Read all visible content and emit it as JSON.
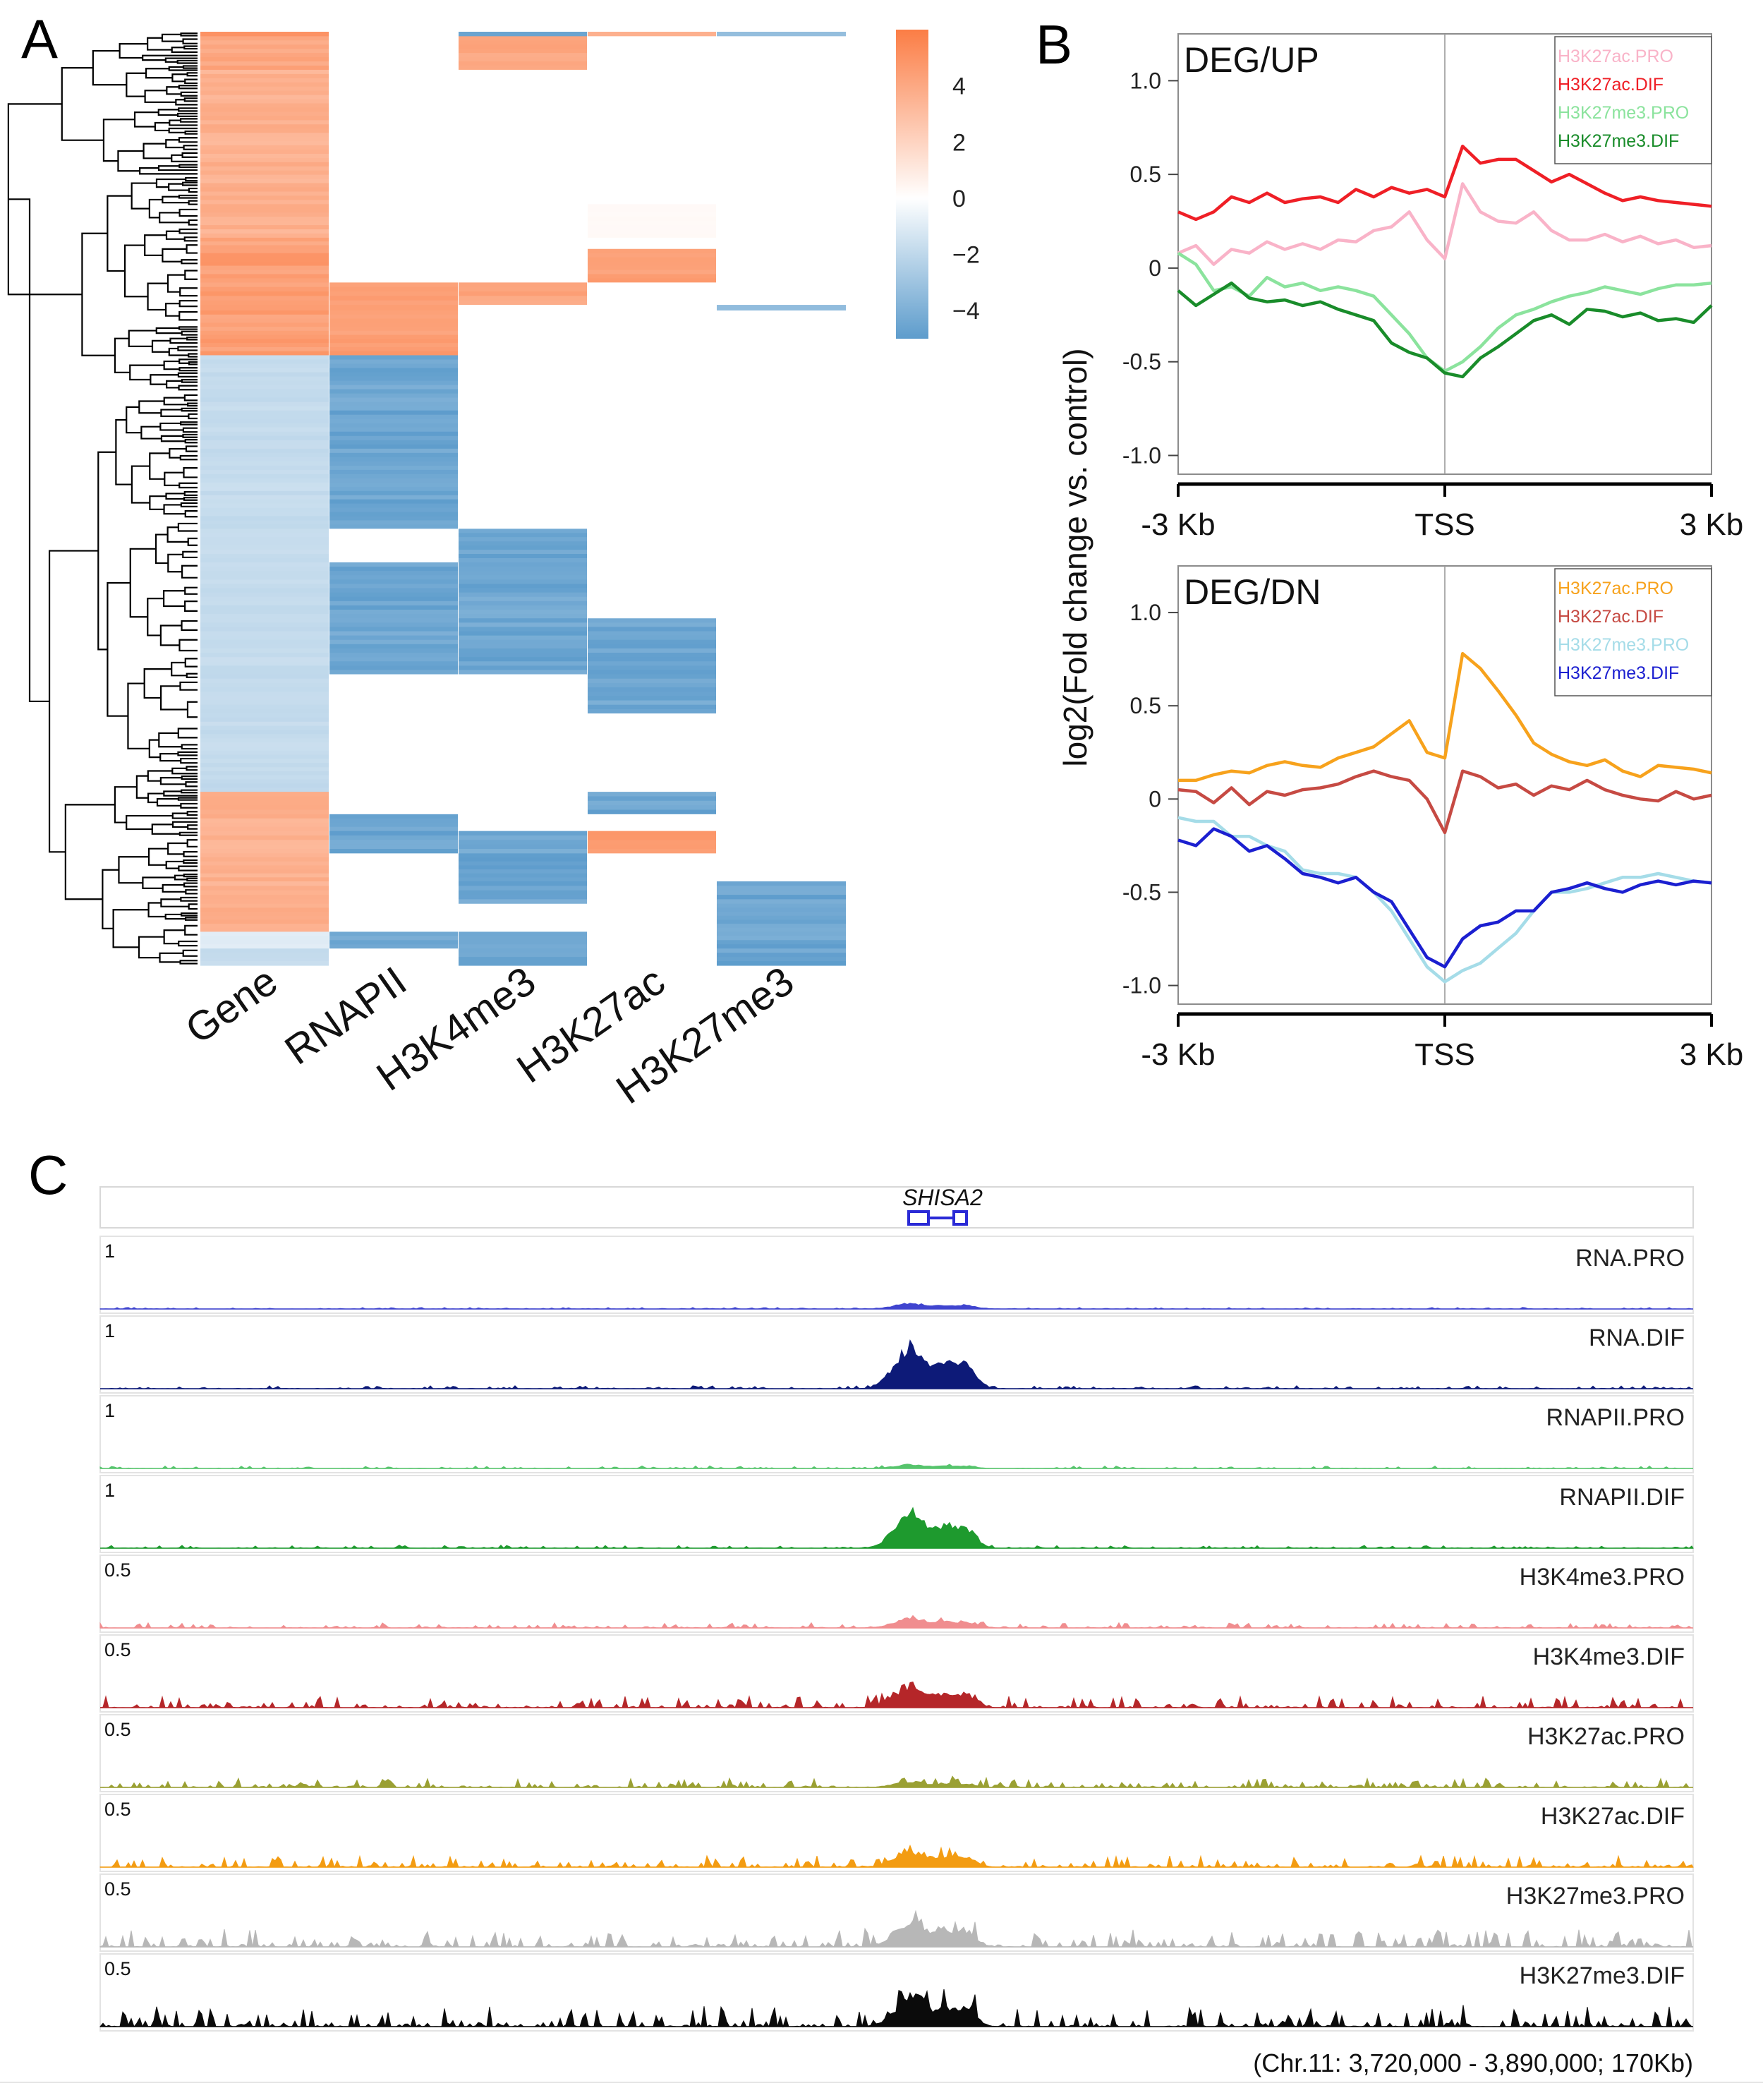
{
  "panels": {
    "a_label": "A",
    "b_label": "B",
    "c_label": "C"
  },
  "chart_data": [
    {
      "type": "heatmap",
      "panel": "A",
      "columns": [
        "Gene",
        "RNAPII",
        "H3K4me3",
        "H3K27ac",
        "H3K27me3"
      ],
      "colorbar": {
        "ticks": [
          4,
          2,
          0,
          -2,
          -4
        ],
        "tick_labels": [
          "4",
          "2",
          "0",
          "−2",
          "−4"
        ],
        "min": -5,
        "max": 6,
        "low_color": "#5d9ccc",
        "mid_color": "#ffffff",
        "high_color": "#fb7d45"
      },
      "row_blocks": [
        {
          "rows": 8,
          "values": [
            5.5,
            0,
            -5,
            4,
            -4
          ]
        },
        {
          "rows": 60,
          "values": [
            4.5,
            0,
            4.5,
            0,
            0
          ]
        },
        {
          "rows": 240,
          "values": [
            4,
            0,
            0,
            0,
            0
          ]
        },
        {
          "rows": 60,
          "values": [
            4,
            0,
            0,
            0.3,
            0
          ]
        },
        {
          "rows": 20,
          "values": [
            4.5,
            0,
            0,
            0,
            0
          ]
        },
        {
          "rows": 60,
          "values": [
            5,
            0,
            0,
            5,
            0
          ]
        },
        {
          "rows": 40,
          "values": [
            5,
            5,
            4.5,
            0,
            0
          ]
        },
        {
          "rows": 10,
          "values": [
            5,
            5,
            0,
            0,
            -4
          ]
        },
        {
          "rows": 80,
          "values": [
            5,
            5,
            0,
            0,
            0
          ]
        },
        {
          "rows": 220,
          "values": [
            -2,
            -5,
            0,
            0,
            0
          ]
        },
        {
          "rows": 90,
          "values": [
            -2,
            -5,
            0,
            0,
            0
          ]
        },
        {
          "rows": 60,
          "values": [
            -2,
            0,
            -5,
            0,
            0
          ]
        },
        {
          "rows": 100,
          "values": [
            -2,
            -5,
            -5,
            0,
            0
          ]
        },
        {
          "rows": 100,
          "values": [
            -2,
            -5,
            -5,
            -5,
            0
          ]
        },
        {
          "rows": 70,
          "values": [
            -2,
            0,
            0,
            -5,
            0
          ]
        },
        {
          "rows": 140,
          "values": [
            -2,
            0,
            0,
            0,
            0
          ]
        },
        {
          "rows": 40,
          "values": [
            4,
            0,
            0,
            -5,
            0
          ]
        },
        {
          "rows": 30,
          "values": [
            4,
            -5,
            0,
            0,
            0
          ]
        },
        {
          "rows": 40,
          "values": [
            4,
            -5,
            -5,
            5,
            0
          ]
        },
        {
          "rows": 50,
          "values": [
            4,
            0,
            -5,
            0,
            0
          ]
        },
        {
          "rows": 40,
          "values": [
            4,
            0,
            -5,
            0,
            -5
          ]
        },
        {
          "rows": 50,
          "values": [
            4,
            0,
            0,
            0,
            -5
          ]
        },
        {
          "rows": 30,
          "values": [
            -1,
            -5,
            -5,
            0,
            -5
          ]
        },
        {
          "rows": 30,
          "values": [
            -2,
            0,
            -5,
            0,
            -5
          ]
        }
      ]
    },
    {
      "type": "line",
      "panel": "B-top",
      "title": "DEG/UP",
      "ylabel": "log2(Fold change vs. control)",
      "xlabel": "",
      "x_tick_labels": [
        "-3 Kb",
        "TSS",
        "3 Kb"
      ],
      "xlim": [
        -3,
        3
      ],
      "ylim": [
        -1.1,
        1.25
      ],
      "y_ticks": [
        1.0,
        0.5,
        0,
        -0.5,
        -1.0
      ],
      "y_tick_labels": [
        "1.0",
        "0.5",
        "0",
        "-0.5",
        "-1.0"
      ],
      "x": [
        -3,
        -2.8,
        -2.6,
        -2.4,
        -2.2,
        -2.0,
        -1.8,
        -1.6,
        -1.4,
        -1.2,
        -1.0,
        -0.8,
        -0.6,
        -0.4,
        -0.2,
        0,
        0.2,
        0.4,
        0.6,
        0.8,
        1.0,
        1.2,
        1.4,
        1.6,
        1.8,
        2.0,
        2.2,
        2.4,
        2.6,
        2.8,
        3.0
      ],
      "series": [
        {
          "name": "H3K27ac.PRO",
          "color": "#f9b3c8",
          "values": [
            0.08,
            0.12,
            0.02,
            0.1,
            0.08,
            0.14,
            0.1,
            0.13,
            0.1,
            0.15,
            0.14,
            0.2,
            0.22,
            0.3,
            0.15,
            0.05,
            0.45,
            0.3,
            0.25,
            0.24,
            0.3,
            0.2,
            0.15,
            0.15,
            0.18,
            0.14,
            0.17,
            0.13,
            0.15,
            0.11,
            0.12
          ]
        },
        {
          "name": "H3K27ac.DIF",
          "color": "#ef1f26",
          "values": [
            0.3,
            0.26,
            0.3,
            0.38,
            0.35,
            0.4,
            0.35,
            0.37,
            0.38,
            0.35,
            0.42,
            0.38,
            0.43,
            0.4,
            0.42,
            0.38,
            0.65,
            0.56,
            0.58,
            0.58,
            0.52,
            0.46,
            0.5,
            0.45,
            0.4,
            0.36,
            0.38,
            0.36,
            0.35,
            0.34,
            0.33
          ]
        },
        {
          "name": "H3K27me3.PRO",
          "color": "#8be39d",
          "values": [
            0.08,
            0.02,
            -0.12,
            -0.1,
            -0.15,
            -0.05,
            -0.1,
            -0.08,
            -0.12,
            -0.1,
            -0.12,
            -0.15,
            -0.25,
            -0.35,
            -0.48,
            -0.55,
            -0.5,
            -0.42,
            -0.32,
            -0.25,
            -0.22,
            -0.18,
            -0.15,
            -0.13,
            -0.1,
            -0.12,
            -0.14,
            -0.11,
            -0.09,
            -0.09,
            -0.08
          ]
        },
        {
          "name": "H3K27me3.DIF",
          "color": "#198c2a",
          "values": [
            -0.12,
            -0.2,
            -0.14,
            -0.08,
            -0.16,
            -0.18,
            -0.17,
            -0.2,
            -0.18,
            -0.22,
            -0.25,
            -0.28,
            -0.4,
            -0.45,
            -0.48,
            -0.56,
            -0.58,
            -0.48,
            -0.42,
            -0.35,
            -0.28,
            -0.25,
            -0.3,
            -0.22,
            -0.23,
            -0.26,
            -0.24,
            -0.28,
            -0.27,
            -0.29,
            -0.2
          ]
        }
      ]
    },
    {
      "type": "line",
      "panel": "B-bottom",
      "title": "DEG/DN",
      "ylabel": "log2(Fold change vs. control)",
      "xlabel": "",
      "x_tick_labels": [
        "-3 Kb",
        "TSS",
        "3 Kb"
      ],
      "xlim": [
        -3,
        3
      ],
      "ylim": [
        -1.1,
        1.25
      ],
      "y_ticks": [
        1.0,
        0.5,
        0,
        -0.5,
        -1.0
      ],
      "y_tick_labels": [
        "1.0",
        "0.5",
        "0",
        "-0.5",
        "-1.0"
      ],
      "x": [
        -3,
        -2.8,
        -2.6,
        -2.4,
        -2.2,
        -2.0,
        -1.8,
        -1.6,
        -1.4,
        -1.2,
        -1.0,
        -0.8,
        -0.6,
        -0.4,
        -0.2,
        0,
        0.2,
        0.4,
        0.6,
        0.8,
        1.0,
        1.2,
        1.4,
        1.6,
        1.8,
        2.0,
        2.2,
        2.4,
        2.6,
        2.8,
        3.0
      ],
      "series": [
        {
          "name": "H3K27ac.PRO",
          "color": "#f7a21c",
          "values": [
            0.1,
            0.1,
            0.13,
            0.15,
            0.14,
            0.18,
            0.2,
            0.18,
            0.17,
            0.22,
            0.25,
            0.28,
            0.35,
            0.42,
            0.25,
            0.22,
            0.78,
            0.7,
            0.58,
            0.45,
            0.3,
            0.24,
            0.2,
            0.18,
            0.21,
            0.15,
            0.12,
            0.18,
            0.17,
            0.16,
            0.14
          ]
        },
        {
          "name": "H3K27ac.DIF",
          "color": "#c64a43",
          "values": [
            0.05,
            0.04,
            -0.02,
            0.06,
            -0.03,
            0.04,
            0.02,
            0.05,
            0.06,
            0.08,
            0.12,
            0.15,
            0.12,
            0.1,
            0.0,
            -0.18,
            0.15,
            0.12,
            0.06,
            0.08,
            0.02,
            0.07,
            0.05,
            0.1,
            0.05,
            0.02,
            0.0,
            -0.01,
            0.04,
            0.0,
            0.02
          ]
        },
        {
          "name": "H3K27me3.PRO",
          "color": "#a5dce8",
          "values": [
            -0.1,
            -0.12,
            -0.12,
            -0.2,
            -0.2,
            -0.25,
            -0.28,
            -0.38,
            -0.4,
            -0.4,
            -0.42,
            -0.5,
            -0.6,
            -0.75,
            -0.9,
            -0.98,
            -0.92,
            -0.88,
            -0.8,
            -0.72,
            -0.6,
            -0.5,
            -0.5,
            -0.48,
            -0.45,
            -0.42,
            -0.42,
            -0.4,
            -0.42,
            -0.44,
            -0.45
          ]
        },
        {
          "name": "H3K27me3.DIF",
          "color": "#1b1fd0",
          "values": [
            -0.22,
            -0.25,
            -0.16,
            -0.2,
            -0.28,
            -0.25,
            -0.32,
            -0.4,
            -0.42,
            -0.45,
            -0.42,
            -0.5,
            -0.55,
            -0.7,
            -0.85,
            -0.9,
            -0.75,
            -0.68,
            -0.66,
            -0.6,
            -0.6,
            -0.5,
            -0.48,
            -0.45,
            -0.48,
            -0.5,
            -0.46,
            -0.44,
            -0.46,
            -0.44,
            -0.45
          ]
        }
      ]
    },
    {
      "type": "area",
      "panel": "C",
      "gene": "SHISA2",
      "footer": "(Chr.11: 3,720,000 - 3,890,000; 170Kb)",
      "tracks": [
        {
          "name": "RNA.PRO",
          "scale": "1",
          "color": "#3f44cf",
          "peak": 0.12,
          "noise": 0.03,
          "seed": 3
        },
        {
          "name": "RNA.DIF",
          "scale": "1",
          "color": "#0d1a78",
          "peak": 0.9,
          "noise": 0.06,
          "seed": 5
        },
        {
          "name": "RNAPII.PRO",
          "scale": "1",
          "color": "#56c46c",
          "peak": 0.08,
          "noise": 0.05,
          "seed": 7
        },
        {
          "name": "RNAPII.DIF",
          "scale": "1",
          "color": "#1e9a2e",
          "peak": 0.75,
          "noise": 0.06,
          "seed": 11
        },
        {
          "name": "H3K4me3.PRO",
          "scale": "0.5",
          "color": "#f08d8f",
          "peak": 0.2,
          "noise": 0.1,
          "seed": 13
        },
        {
          "name": "H3K4me3.DIF",
          "scale": "0.5",
          "color": "#b52629",
          "peak": 0.45,
          "noise": 0.22,
          "seed": 17
        },
        {
          "name": "H3K27ac.PRO",
          "scale": "0.5",
          "color": "#9aa033",
          "peak": 0.12,
          "noise": 0.18,
          "seed": 19
        },
        {
          "name": "H3K27ac.DIF",
          "scale": "0.5",
          "color": "#f39c12",
          "peak": 0.32,
          "noise": 0.22,
          "seed": 23
        },
        {
          "name": "H3K27me3.PRO",
          "scale": "0.5",
          "color": "#b7b7b7",
          "peak": 0.55,
          "noise": 0.35,
          "seed": 29
        },
        {
          "name": "H3K27me3.DIF",
          "scale": "0.5",
          "color": "#0b0b0b",
          "peak": 0.6,
          "noise": 0.42,
          "seed": 31
        }
      ]
    }
  ]
}
